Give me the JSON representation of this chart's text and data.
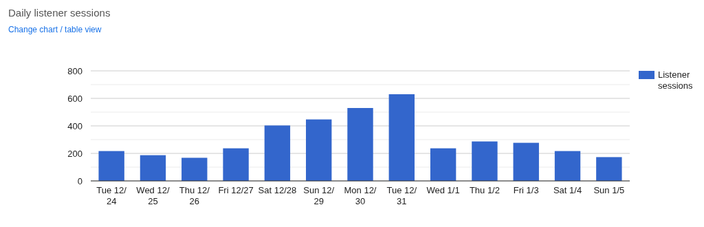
{
  "chart_data": {
    "type": "bar",
    "title": "Daily listener sessions",
    "annotations": [
      "Change chart / table view"
    ],
    "categories": [
      "Tue 12/24",
      "Wed 12/25",
      "Thu 12/26",
      "Fri 12/27",
      "Sat 12/28",
      "Sun 12/29",
      "Mon 12/30",
      "Tue 12/31",
      "Wed 1/1",
      "Thu 1/2",
      "Fri 1/3",
      "Sat 1/4",
      "Sun 1/5"
    ],
    "series": [
      {
        "name": "Listener sessions",
        "color": "#3366cc",
        "values": [
          217,
          187,
          168,
          237,
          403,
          447,
          530,
          630,
          237,
          287,
          277,
          217,
          173
        ]
      }
    ],
    "ylim": [
      0,
      800
    ],
    "yticks": [
      0,
      {
        "value": 100,
        "label": null
      },
      200,
      {
        "value": 300,
        "label": null
      },
      400,
      {
        "value": 500,
        "label": null
      },
      600,
      {
        "value": 700,
        "label": null
      },
      800
    ],
    "grid": true,
    "legend": "right"
  }
}
